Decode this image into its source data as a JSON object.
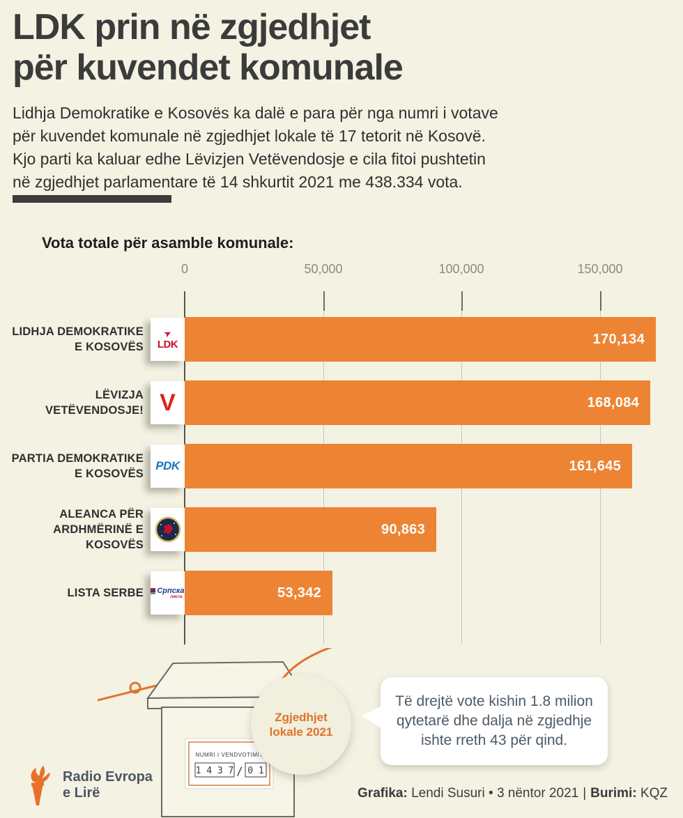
{
  "header": {
    "title": "LDK prin në zgjedhjet\npër kuvendet komunale",
    "intro": "Lidhja Demokratike e Kosovës ka dalë e para për nga numri i votave\npër kuvendet komunale në zgjedhjet lokale të 17 tetorit në Kosovë.\nKjo parti ka kaluar edhe Lëvizjen Vetëvendosje e cila fitoi pushtetin\nnë zgjedhjet parlamentare të 14 shkurtit 2021 me 438.334 vota."
  },
  "chart_data": {
    "type": "bar",
    "orientation": "horizontal",
    "title": "Vota totale për asamble komunale:",
    "categories": [
      "LIDHJA DEMOKRATIKE E KOSOVËS",
      "LËVIZJA VETËVENDOSJE!",
      "PARTIA DEMOKRATIKE E KOSOVËS",
      "ALEANCA PËR ARDHMËRINË E KOSOVËS",
      "LISTA SERBE"
    ],
    "categories_multiline": [
      "LIDHJA DEMOKRATIKE\nE KOSOVËS",
      "LËVIZJA\nVETËVENDOSJE!",
      "PARTIA DEMOKRATIKE\nE KOSOVËS",
      "ALEANCA PËR\nARDHMËRINË E\nKOSOVËS",
      "LISTA SERBE"
    ],
    "values": [
      170134,
      168084,
      161645,
      90863,
      53342
    ],
    "value_labels": [
      "170,134",
      "168,084",
      "161,645",
      "90,863",
      "53,342"
    ],
    "x_ticks": [
      "0",
      "50,000",
      "100,000",
      "150,000"
    ],
    "x_tick_values": [
      0,
      50000,
      100000,
      150000
    ],
    "xlim": [
      0,
      178000
    ],
    "bar_color": "#ED8433",
    "grid": "vertical-gridlines",
    "legend": "none"
  },
  "logos": {
    "ldk": "LDK",
    "ldk_arrow": "➤",
    "vv": "V",
    "pdk": "PDK",
    "srpska": "Српска",
    "srpska_sub": "листа"
  },
  "illustration": {
    "badge_text": "Zgjedhjet\nlokale 2021",
    "box_label_title": "NUMRI I VENDVOTIMIT",
    "box_number_main": "1 4 3 7",
    "box_number_slash": "/",
    "box_number_suffix": "0 1",
    "bubble_text": "Të drejtë vote kishin 1.8 milion qytetarë dhe dalja në zgjedhje ishte rreth 43 për qind."
  },
  "footer": {
    "credit_label": "Grafika:",
    "credit_text": " Lendi Susuri • 3 nëntor 2021",
    "separator": "|",
    "source_label": "Burimi:",
    "source_text": " KQZ",
    "logo_text": "Radio Evropa\ne Lirë"
  },
  "colors": {
    "background": "#F4F2E3",
    "bar_orange": "#ED8433",
    "accent_orange": "#E0722C",
    "title_dark": "#3B3B3B",
    "axis_gray": "#8B8B80",
    "bubble_text": "#4D5A66",
    "ldk_red": "#C8102E",
    "vv_red": "#D9251D",
    "pdk_blue": "#1C75BC",
    "srpska_blue": "#24408E"
  }
}
